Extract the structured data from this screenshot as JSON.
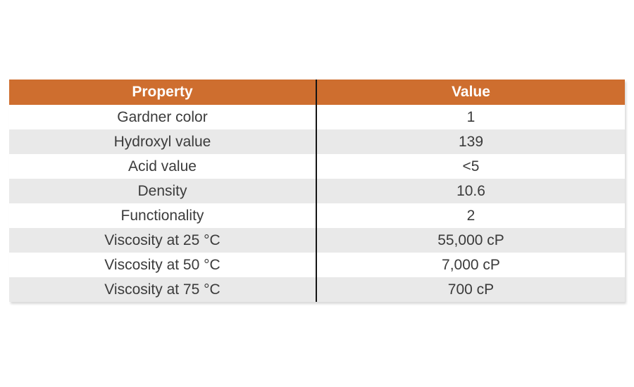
{
  "colors": {
    "accent": "#CE6E2F",
    "row_alt": "#E9E9E9",
    "text": "#3B3B3B",
    "divider": "#141414",
    "header_text": "#FFFFFF"
  },
  "table": {
    "headers": [
      "Property",
      "Value"
    ],
    "rows": [
      {
        "property": "Gardner color",
        "value": "1"
      },
      {
        "property": "Hydroxyl value",
        "value": "139"
      },
      {
        "property": "Acid value",
        "value": "<5"
      },
      {
        "property": "Density",
        "value": "10.6"
      },
      {
        "property": "Functionality",
        "value": "2"
      },
      {
        "property": "Viscosity at 25 °C",
        "value": "55,000 cP"
      },
      {
        "property": "Viscosity at 50 °C",
        "value": "7,000 cP"
      },
      {
        "property": "Viscosity at 75 °C",
        "value": "700 cP"
      }
    ]
  },
  "chart_data": {
    "type": "table",
    "columns": [
      "Property",
      "Value"
    ],
    "rows": [
      [
        "Gardner color",
        "1"
      ],
      [
        "Hydroxyl value",
        "139"
      ],
      [
        "Acid value",
        "<5"
      ],
      [
        "Density",
        "10.6"
      ],
      [
        "Functionality",
        "2"
      ],
      [
        "Viscosity at 25 °C",
        "55,000 cP"
      ],
      [
        "Viscosity at 50 °C",
        "7,000 cP"
      ],
      [
        "Viscosity at 75 °C",
        "700 cP"
      ]
    ],
    "title": "",
    "legend": "none",
    "grid": "off"
  }
}
